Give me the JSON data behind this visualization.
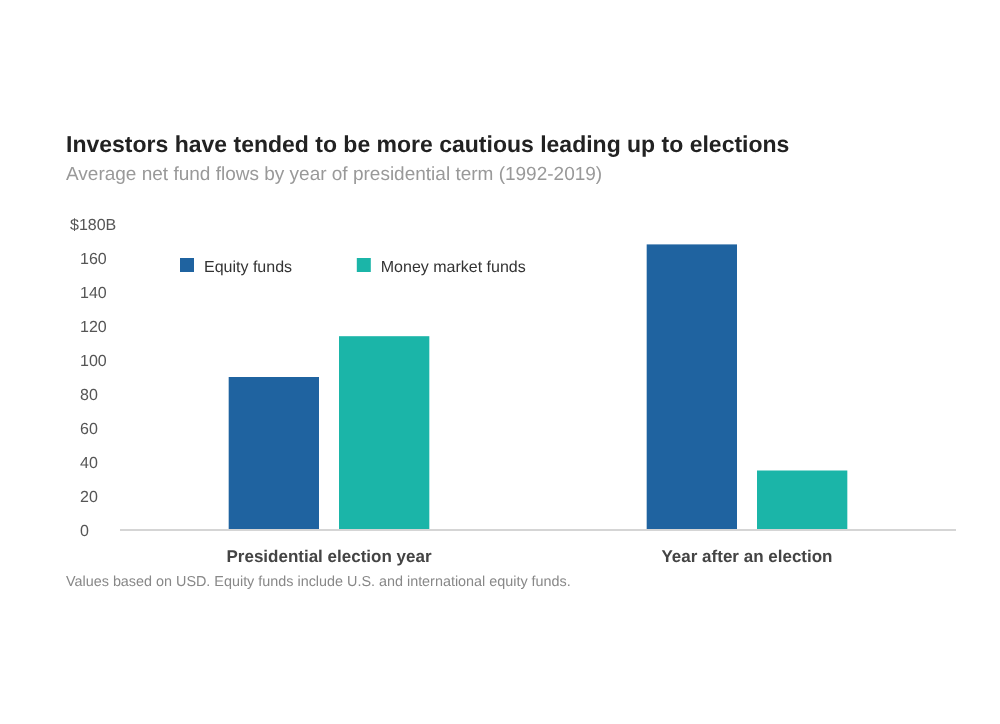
{
  "chart_data": {
    "type": "bar",
    "title": "Investors have tended to be more cautious leading up to elections",
    "subtitle": "Average net fund flows by year of presidential term (1992-2019)",
    "categories": [
      "Presidential election year",
      "Year after an election"
    ],
    "series": [
      {
        "name": "Equity funds",
        "color": "#1f63a0",
        "values": [
          90,
          168
        ]
      },
      {
        "name": "Money market funds",
        "color": "#1bb5a8",
        "values": [
          114,
          35
        ]
      }
    ],
    "ylim": [
      0,
      180
    ],
    "yticks": [
      0,
      20,
      40,
      60,
      80,
      100,
      120,
      140,
      160,
      {
        "value": 180,
        "label": "$180B"
      }
    ],
    "grid": false,
    "legend": "top left",
    "annotations": [
      "Values based on USD. Equity funds include U.S. and international equity funds."
    ]
  }
}
